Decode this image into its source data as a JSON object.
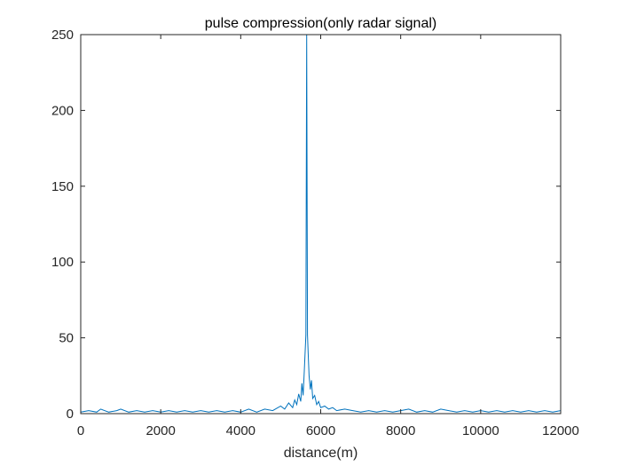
{
  "chart_data": {
    "type": "line",
    "title": "pulse compression(only radar signal)",
    "xlabel": "distance(m)",
    "ylabel": "",
    "xlim": [
      0,
      12000
    ],
    "ylim": [
      0,
      250
    ],
    "xticks": [
      0,
      2000,
      4000,
      6000,
      8000,
      10000,
      12000
    ],
    "xtick_labels": [
      "0",
      "2000",
      "4000",
      "6000",
      "8000",
      "10000",
      "12000"
    ],
    "yticks": [
      0,
      50,
      100,
      150,
      200,
      250
    ],
    "ytick_labels": [
      "0",
      "50",
      "100",
      "150",
      "200",
      "250"
    ],
    "grid": false,
    "legend": "none",
    "series": [
      {
        "color": "#0072BD",
        "x": [
          0,
          200,
          400,
          500,
          700,
          900,
          1000,
          1200,
          1400,
          1600,
          1800,
          2000,
          2200,
          2400,
          2600,
          2800,
          3000,
          3200,
          3400,
          3600,
          3800,
          4000,
          4200,
          4400,
          4600,
          4800,
          5000,
          5100,
          5200,
          5300,
          5350,
          5400,
          5450,
          5500,
          5530,
          5560,
          5590,
          5610,
          5630,
          5650,
          5670,
          5690,
          5710,
          5740,
          5770,
          5800,
          5850,
          5900,
          5950,
          6000,
          6100,
          6200,
          6300,
          6400,
          6600,
          6800,
          7000,
          7200,
          7400,
          7600,
          7800,
          8000,
          8200,
          8400,
          8600,
          8800,
          9000,
          9200,
          9400,
          9600,
          9800,
          10000,
          10200,
          10400,
          10600,
          10800,
          11000,
          11200,
          11400,
          11600,
          11800,
          12000
        ],
        "y": [
          1,
          2,
          1,
          3,
          1,
          2,
          3,
          1,
          2,
          1,
          2,
          1,
          2,
          1,
          2,
          1,
          2,
          1,
          2,
          1,
          2,
          1,
          3,
          1,
          3,
          2,
          5,
          3,
          7,
          4,
          9,
          6,
          13,
          8,
          20,
          12,
          28,
          40,
          52,
          250,
          52,
          38,
          25,
          16,
          22,
          10,
          12,
          6,
          8,
          4,
          5,
          3,
          4,
          2,
          3,
          2,
          1,
          2,
          1,
          2,
          1,
          2,
          3,
          1,
          2,
          1,
          3,
          2,
          1,
          2,
          1,
          2,
          1,
          2,
          1,
          2,
          1,
          2,
          1,
          2,
          1,
          2
        ]
      }
    ]
  }
}
